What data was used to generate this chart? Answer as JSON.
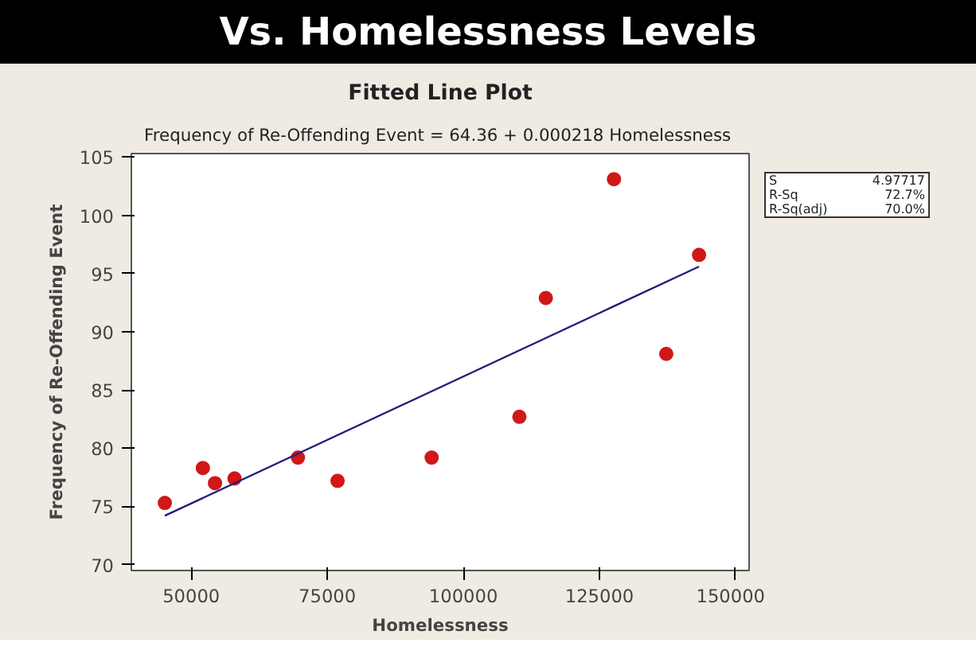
{
  "chart_data": {
    "type": "scatter",
    "title": "Vs. Homelessness Levels",
    "subtitle": "Fitted Line Plot",
    "xlabel": "Homelessness",
    "ylabel": "Frequency of Re-Offending Event",
    "annotations": [
      "Frequency of Re-Offending Event =  64.36 + 0.000218 Homelessness",
      "S",
      "4.97717",
      "R-Sq",
      "72.7%",
      "R-Sq(adj)",
      "70.0%"
    ],
    "xlim": [
      39000,
      152500
    ],
    "ylim": [
      69.5,
      105.3
    ],
    "xticks": [
      50000,
      75000,
      100000,
      125000,
      150000
    ],
    "yticks": [
      70,
      75,
      80,
      85,
      90,
      95,
      100,
      105
    ],
    "grid": false,
    "series": [
      {
        "marker": "circle",
        "color": "#d01818",
        "x": [
          45150,
          52140,
          54370,
          57960,
          69610,
          76890,
          94170,
          110290,
          115150,
          127670,
          137280,
          143300
        ],
        "values": [
          75.3,
          78.3,
          77.0,
          77.4,
          79.2,
          77.2,
          79.2,
          82.7,
          92.9,
          103.1,
          88.1,
          96.6
        ]
      },
      {
        "type": "line",
        "color": "#1f1f78",
        "line_style": "solid",
        "x": [
          45150,
          143300
        ],
        "values": [
          74.2,
          95.6
        ]
      }
    ]
  }
}
